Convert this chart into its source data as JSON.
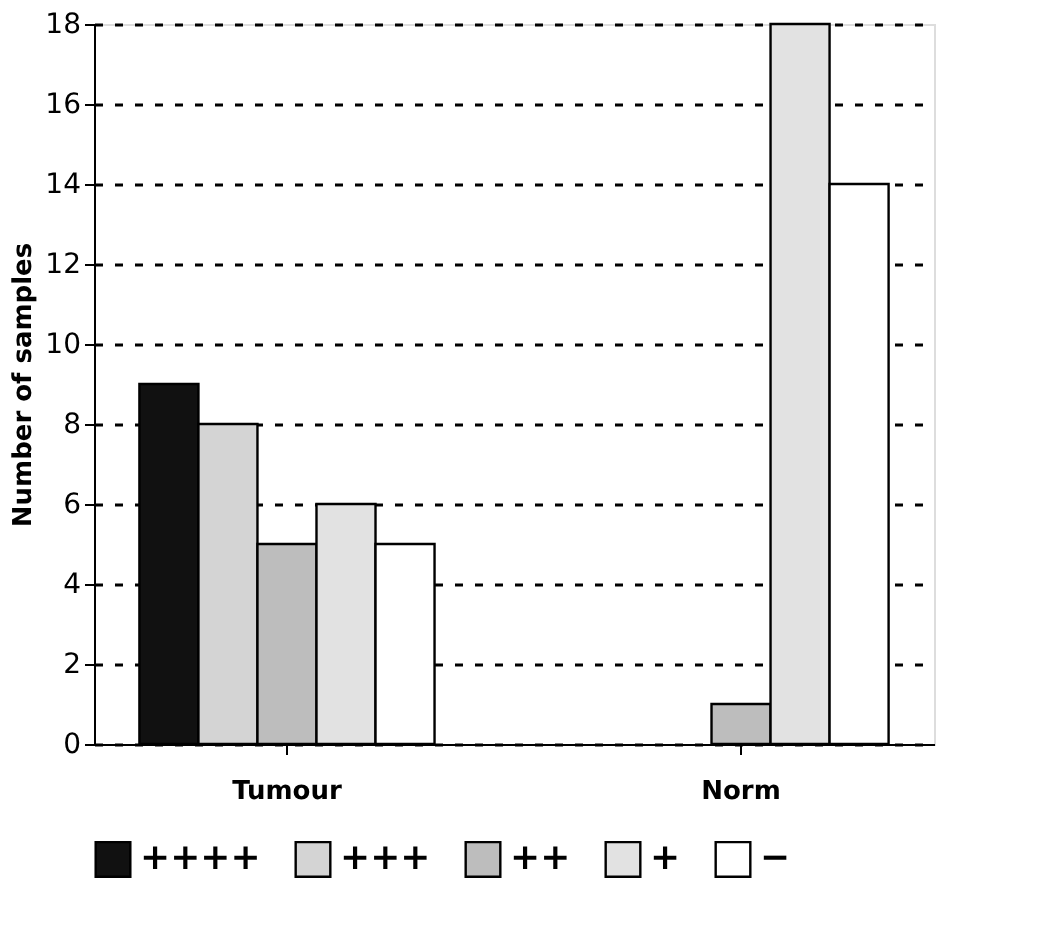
{
  "chart_data": {
    "type": "bar",
    "ylabel": "Number of samples",
    "categories": [
      "Tumour",
      "Norm"
    ],
    "series": [
      {
        "name": "++++",
        "color": "#111111",
        "values": [
          9,
          0
        ]
      },
      {
        "name": "+++",
        "color": "#d4d4d4",
        "values": [
          8,
          0
        ]
      },
      {
        "name": "++",
        "color": "#bdbdbd",
        "values": [
          5,
          1
        ]
      },
      {
        "name": "+",
        "color": "#e2e2e2",
        "values": [
          6,
          18
        ]
      },
      {
        "name": "−",
        "color": "#ffffff",
        "values": [
          5,
          14
        ]
      }
    ],
    "ylim": [
      0,
      18
    ],
    "yticks": [
      0,
      2,
      4,
      6,
      8,
      10,
      12,
      14,
      16,
      18
    ],
    "grid": "y",
    "legend": "bottom"
  }
}
